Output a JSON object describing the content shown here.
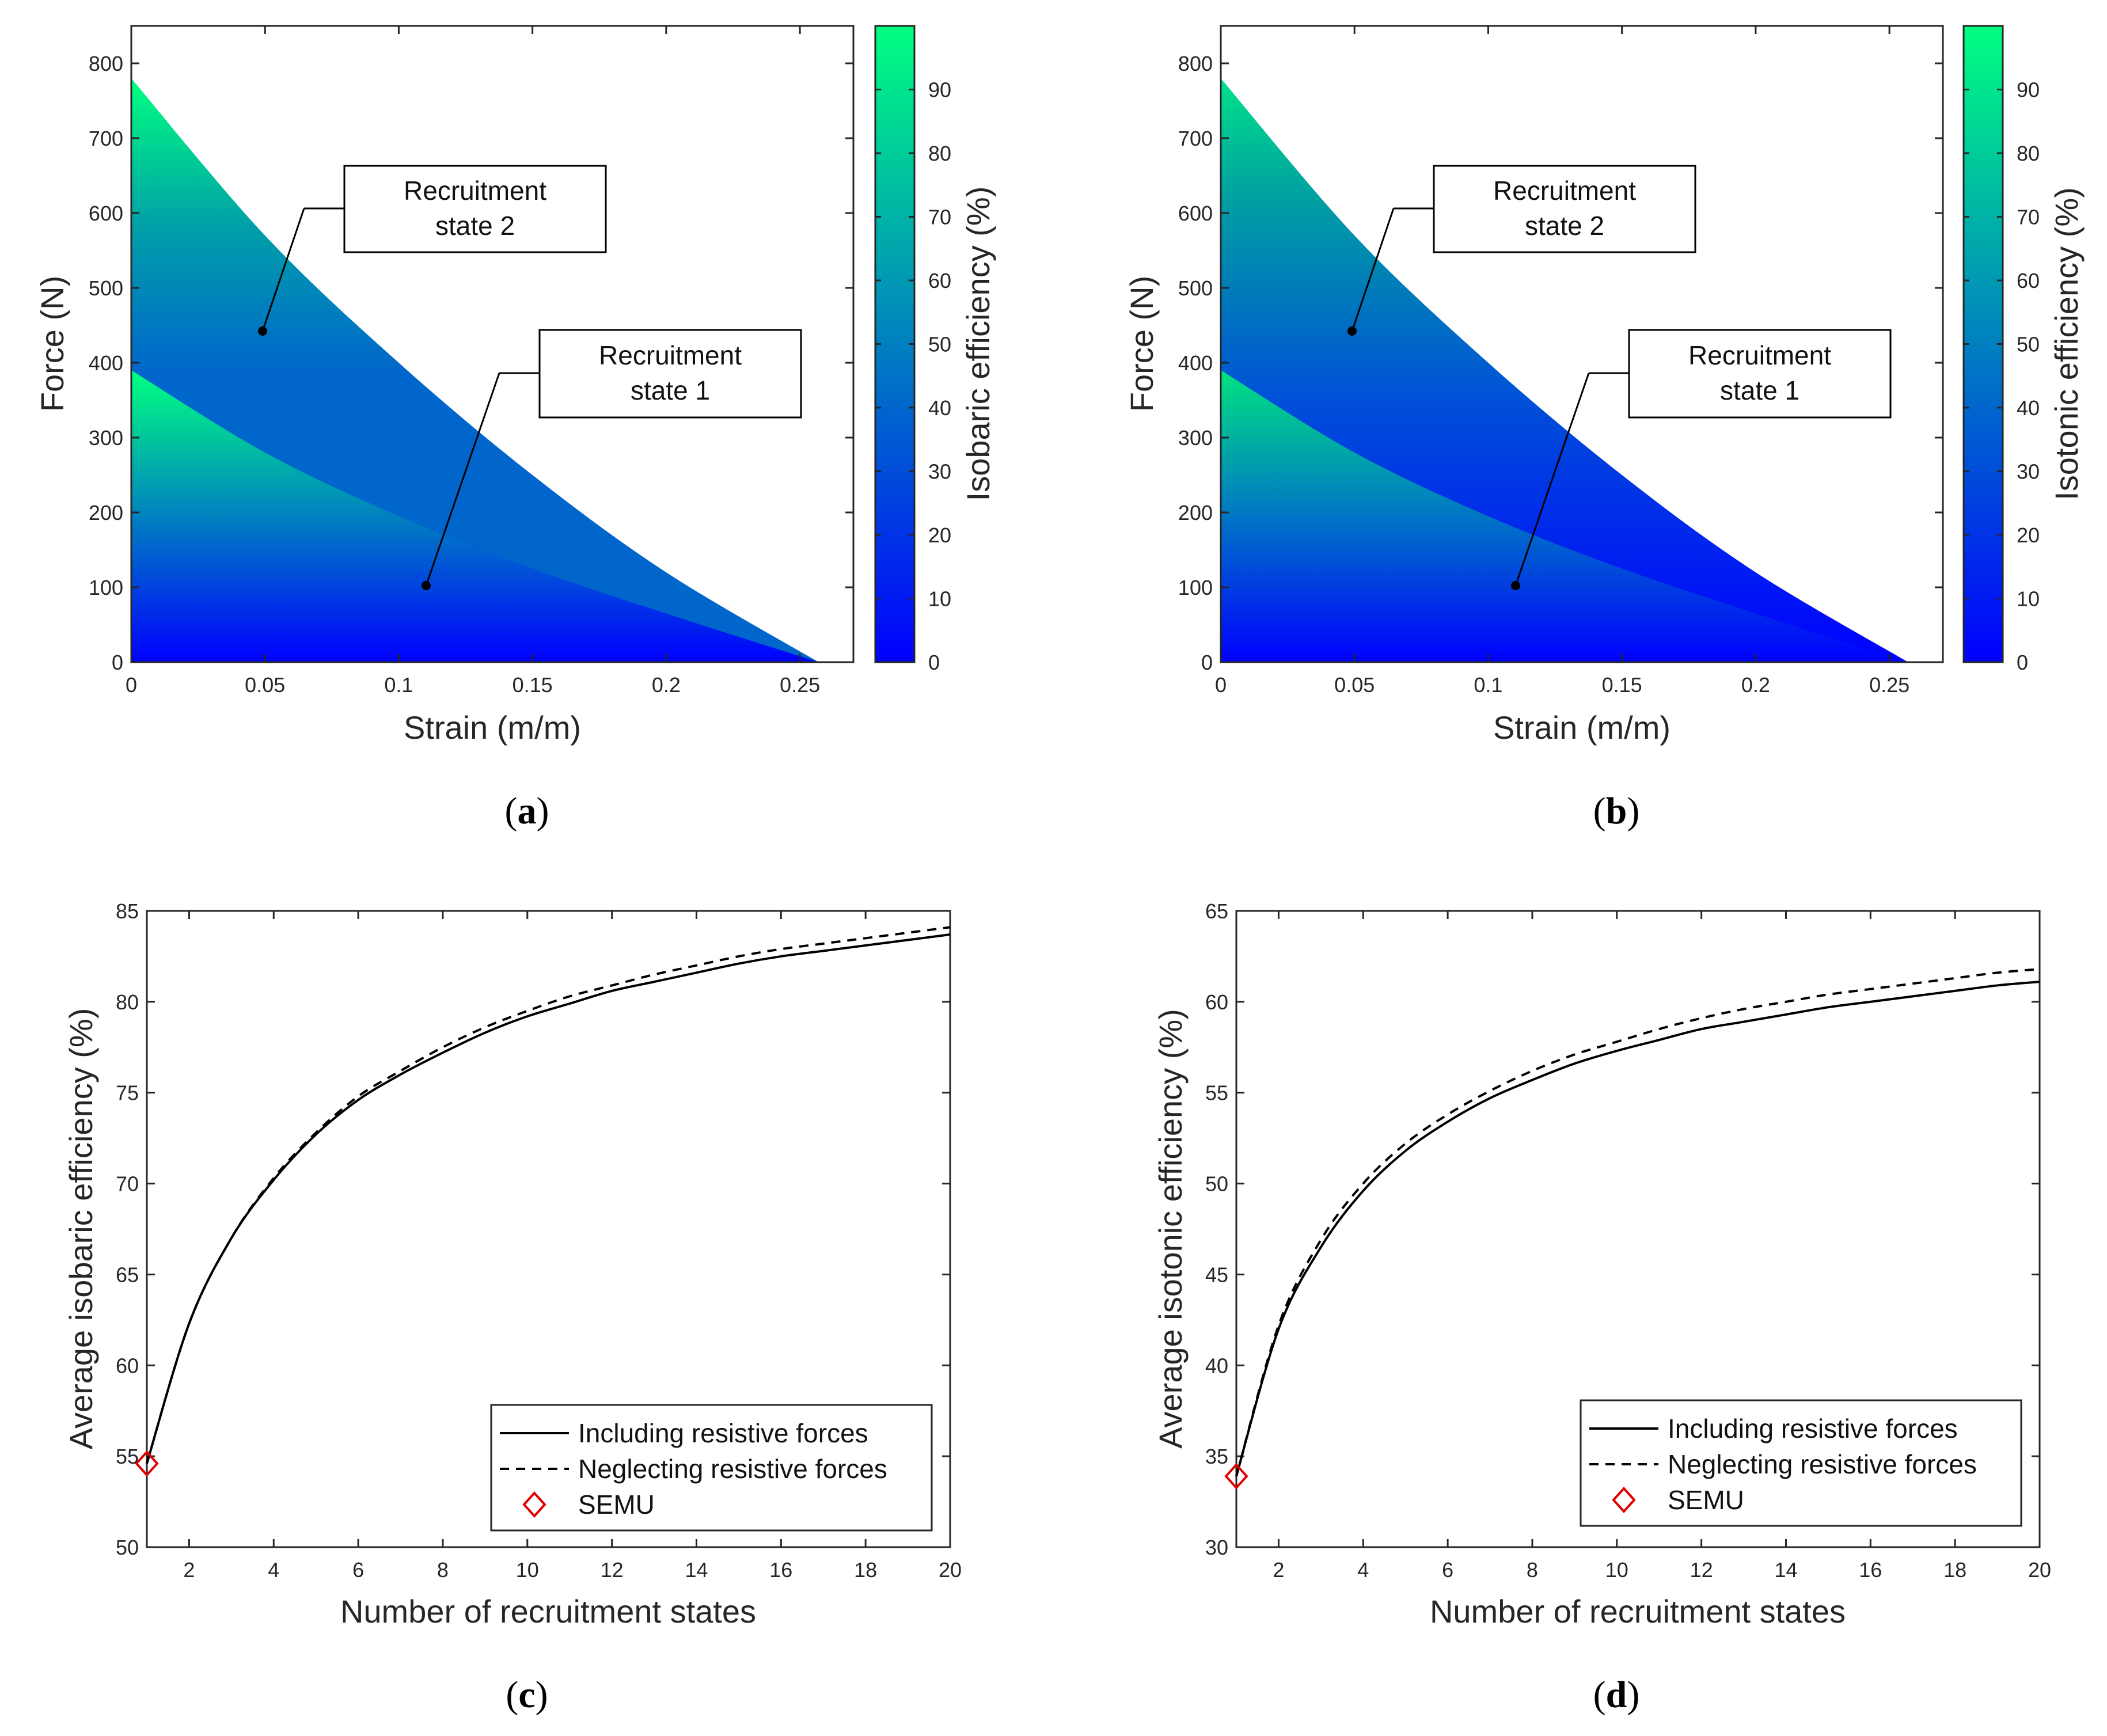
{
  "colors": {
    "low": "#0000ff",
    "mid": "#0080c0",
    "high": "#00ff80",
    "semu": "#e00000",
    "axis": "#262626"
  },
  "panels": [
    {
      "label_open": "(",
      "label_letter": "a",
      "label_close": ")"
    },
    {
      "label_open": "(",
      "label_letter": "b",
      "label_close": ")"
    },
    {
      "label_open": "(",
      "label_letter": "c",
      "label_close": ")"
    },
    {
      "label_open": "(",
      "label_letter": "d",
      "label_close": ")"
    }
  ],
  "chart_data": [
    {
      "type": "heatmap",
      "panel": "a",
      "xlabel": "Strain (m/m)",
      "ylabel": "Force (N)",
      "xlim": [
        0,
        0.27
      ],
      "ylim": [
        0,
        850
      ],
      "xticks": [
        0,
        0.05,
        0.1,
        0.15,
        0.2,
        0.25
      ],
      "xtick_labels": [
        "0",
        "0.05",
        "0.1",
        "0.15",
        "0.2",
        "0.25"
      ],
      "yticks": [
        0,
        100,
        200,
        300,
        400,
        500,
        600,
        700,
        800
      ],
      "ytick_labels": [
        "0",
        "100",
        "200",
        "300",
        "400",
        "500",
        "600",
        "700",
        "800"
      ],
      "colorbar": {
        "label": "Isobaric efficiency (%)",
        "range": [
          0,
          100
        ],
        "ticks": [
          0,
          10,
          20,
          30,
          40,
          50,
          60,
          70,
          80,
          90
        ],
        "tick_labels": [
          "0",
          "10",
          "20",
          "30",
          "40",
          "50",
          "60",
          "70",
          "80",
          "90"
        ]
      },
      "boundaries": {
        "state_2": {
          "x": [
            0,
            0.05,
            0.1,
            0.15,
            0.2,
            0.257
          ],
          "y": [
            780,
            570,
            400,
            250,
            120,
            0
          ]
        },
        "state_1": {
          "x": [
            0,
            0.05,
            0.1,
            0.15,
            0.2,
            0.257
          ],
          "y": [
            390,
            280,
            195,
            125,
            65,
            0
          ]
        }
      },
      "annotations": [
        {
          "line1": "Recruitment",
          "line2": "state 2",
          "x": 0.049,
          "y": 443
        },
        {
          "line1": "Recruitment",
          "line2": "state 1",
          "x": 0.11,
          "y": 103
        }
      ]
    },
    {
      "type": "heatmap",
      "panel": "b",
      "xlabel": "Strain (m/m)",
      "ylabel": "Force (N)",
      "xlim": [
        0,
        0.27
      ],
      "ylim": [
        0,
        850
      ],
      "xticks": [
        0,
        0.05,
        0.1,
        0.15,
        0.2,
        0.25
      ],
      "xtick_labels": [
        "0",
        "0.05",
        "0.1",
        "0.15",
        "0.2",
        "0.25"
      ],
      "yticks": [
        0,
        100,
        200,
        300,
        400,
        500,
        600,
        700,
        800
      ],
      "ytick_labels": [
        "0",
        "100",
        "200",
        "300",
        "400",
        "500",
        "600",
        "700",
        "800"
      ],
      "colorbar": {
        "label": "Isotonic efficiency (%)",
        "range": [
          0,
          100
        ],
        "ticks": [
          0,
          10,
          20,
          30,
          40,
          50,
          60,
          70,
          80,
          90
        ],
        "tick_labels": [
          "0",
          "10",
          "20",
          "30",
          "40",
          "50",
          "60",
          "70",
          "80",
          "90"
        ]
      },
      "boundaries": {
        "state_2": {
          "x": [
            0,
            0.05,
            0.1,
            0.15,
            0.2,
            0.257
          ],
          "y": [
            780,
            570,
            400,
            250,
            120,
            0
          ]
        },
        "state_1": {
          "x": [
            0,
            0.05,
            0.1,
            0.15,
            0.2,
            0.257
          ],
          "y": [
            390,
            280,
            195,
            125,
            65,
            0
          ]
        }
      },
      "annotations": [
        {
          "line1": "Recruitment",
          "line2": "state 2",
          "x": 0.049,
          "y": 443
        },
        {
          "line1": "Recruitment",
          "line2": "state 1",
          "x": 0.11,
          "y": 103
        }
      ]
    },
    {
      "type": "line",
      "panel": "c",
      "xlabel": "Number of recruitment states",
      "ylabel": "Average isobaric efficiency (%)",
      "xlim": [
        1,
        20
      ],
      "ylim": [
        50,
        85
      ],
      "xticks": [
        2,
        4,
        6,
        8,
        10,
        12,
        14,
        16,
        18,
        20
      ],
      "xtick_labels": [
        "2",
        "4",
        "6",
        "8",
        "10",
        "12",
        "14",
        "16",
        "18",
        "20"
      ],
      "yticks": [
        50,
        55,
        60,
        65,
        70,
        75,
        80,
        85
      ],
      "ytick_labels": [
        "50",
        "55",
        "60",
        "65",
        "70",
        "75",
        "80",
        "85"
      ],
      "x": [
        1,
        2,
        3,
        4,
        5,
        6,
        7,
        8,
        9,
        10,
        11,
        12,
        13,
        14,
        15,
        16,
        17,
        18,
        19,
        20
      ],
      "series": [
        {
          "name": "Including resistive forces",
          "style": "solid",
          "values": [
            54.6,
            62.3,
            67.0,
            70.2,
            72.7,
            74.6,
            76.0,
            77.2,
            78.3,
            79.2,
            79.9,
            80.6,
            81.1,
            81.6,
            82.1,
            82.5,
            82.8,
            83.1,
            83.4,
            83.7
          ]
        },
        {
          "name": "Neglecting resistive forces",
          "style": "dashed",
          "values": [
            54.6,
            62.3,
            67.0,
            70.3,
            72.8,
            74.8,
            76.2,
            77.5,
            78.6,
            79.5,
            80.3,
            80.9,
            81.5,
            82.0,
            82.5,
            82.9,
            83.2,
            83.5,
            83.8,
            84.1
          ]
        }
      ],
      "marker": {
        "name": "SEMU",
        "x": 1,
        "y": 54.6
      },
      "legend": "bottom-right"
    },
    {
      "type": "line",
      "panel": "d",
      "xlabel": "Number of recruitment states",
      "ylabel": "Average isotonic efficiency (%)",
      "xlim": [
        1,
        20
      ],
      "ylim": [
        30,
        65
      ],
      "xticks": [
        2,
        4,
        6,
        8,
        10,
        12,
        14,
        16,
        18,
        20
      ],
      "xtick_labels": [
        "2",
        "4",
        "6",
        "8",
        "10",
        "12",
        "14",
        "16",
        "18",
        "20"
      ],
      "yticks": [
        30,
        35,
        40,
        45,
        50,
        55,
        60,
        65
      ],
      "ytick_labels": [
        "30",
        "35",
        "40",
        "45",
        "50",
        "55",
        "60",
        "65"
      ],
      "x": [
        1,
        2,
        3,
        4,
        5,
        6,
        7,
        8,
        9,
        10,
        11,
        12,
        13,
        14,
        15,
        16,
        17,
        18,
        19,
        20
      ],
      "series": [
        {
          "name": "Including resistive forces",
          "style": "solid",
          "values": [
            33.9,
            42.0,
            46.5,
            49.6,
            51.8,
            53.4,
            54.7,
            55.7,
            56.6,
            57.3,
            57.9,
            58.5,
            58.9,
            59.3,
            59.7,
            60.0,
            60.3,
            60.6,
            60.9,
            61.1
          ]
        },
        {
          "name": "Neglecting resistive forces",
          "style": "dashed",
          "values": [
            33.9,
            42.2,
            46.9,
            50.0,
            52.2,
            53.8,
            55.1,
            56.2,
            57.1,
            57.8,
            58.5,
            59.1,
            59.6,
            60.0,
            60.4,
            60.7,
            61.0,
            61.3,
            61.6,
            61.8
          ]
        }
      ],
      "marker": {
        "name": "SEMU",
        "x": 1,
        "y": 33.9
      },
      "legend": "bottom-right"
    }
  ]
}
